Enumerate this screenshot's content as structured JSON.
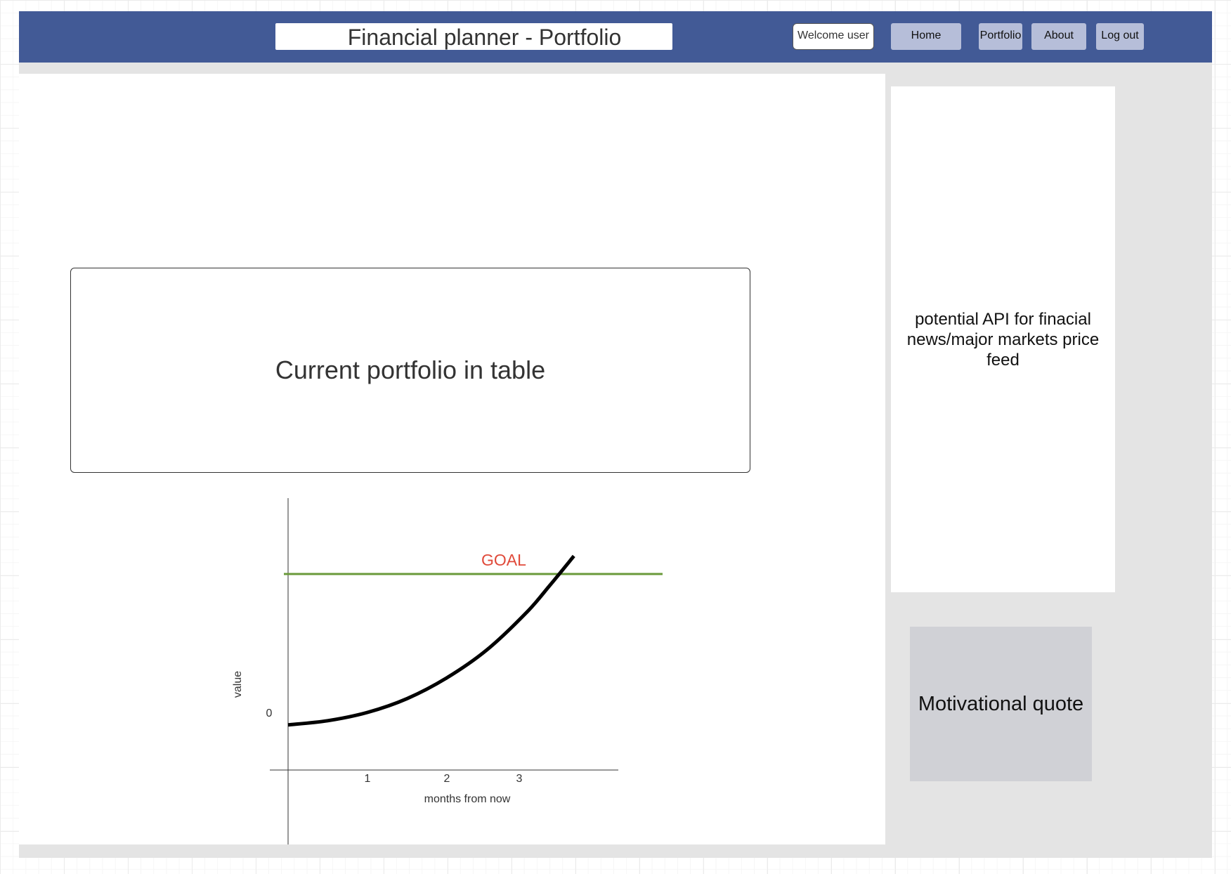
{
  "header": {
    "title": "Financial planner - Portfolio",
    "welcome": "Welcome user",
    "nav": [
      {
        "label": "Home"
      },
      {
        "label": "Portfolio"
      },
      {
        "label": "About"
      },
      {
        "label": "Log out"
      }
    ]
  },
  "main": {
    "table_placeholder": "Current portfolio in table"
  },
  "sidebar": {
    "news_placeholder": "potential API for finacial news/major markets price feed",
    "quote_placeholder": "Motivational quote"
  },
  "colors": {
    "header_bg": "#425a96",
    "nav_button_bg": "#b6bed9",
    "goal_line": "#6a9a3a",
    "goal_label": "#e04a3a",
    "curve": "#000000"
  },
  "chart_data": {
    "type": "line",
    "xlabel": "months from now",
    "ylabel": "value",
    "x_ticks": [
      "1",
      "2",
      "3"
    ],
    "y_ticks": [
      "0"
    ],
    "goal_label": "GOAL",
    "series": [
      {
        "x": [
          0,
          0.5,
          1,
          1.5,
          2,
          2.5,
          3,
          3.3,
          3.6
        ],
        "values": [
          -0.09,
          -0.06,
          0.0,
          0.1,
          0.25,
          0.45,
          0.72,
          0.92,
          1.13
        ]
      }
    ],
    "goal_value": 1.0
  }
}
